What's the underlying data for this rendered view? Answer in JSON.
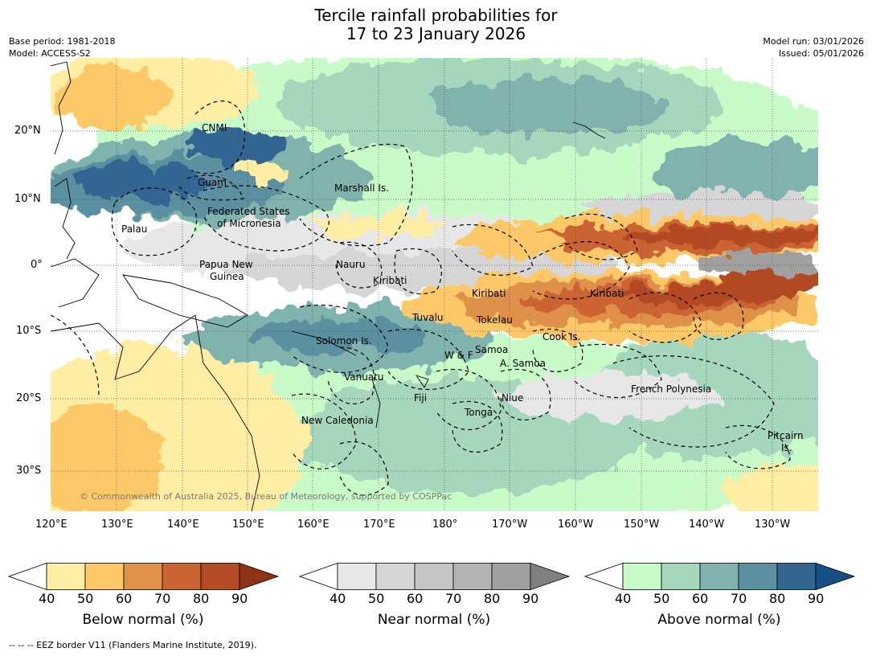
{
  "title_line1": "Tercile rainfall probabilities for",
  "title_line2": "17 to 23 January 2026",
  "base_period": "Base period: 1981-2018",
  "model": "Model: ACCESS-S2",
  "model_run": "Model run: 03/01/2026",
  "issued": "Issued: 05/01/2026",
  "lat_labels": [
    "20°N",
    "10°N",
    "0°",
    "10°S",
    "20°S",
    "30°S"
  ],
  "lon_labels": [
    "120°E",
    "130°E",
    "140°E",
    "150°E",
    "160°E",
    "170°E",
    "180°",
    "170°W",
    "160°W",
    "150°W",
    "140°W",
    "130°W"
  ],
  "places": [
    {
      "name": "CNMI"
    },
    {
      "name": "Guam"
    },
    {
      "name": "Marshall Is."
    },
    {
      "name": "Federated States"
    },
    {
      "name": "of Micronesia"
    },
    {
      "name": "Palau"
    },
    {
      "name": "Papua New"
    },
    {
      "name": "Guinea"
    },
    {
      "name": "Nauru"
    },
    {
      "name": "Kiribati"
    },
    {
      "name": "Kiribati"
    },
    {
      "name": "Kiribati"
    },
    {
      "name": "Tuvalu"
    },
    {
      "name": "Tokelau"
    },
    {
      "name": "Cook Is."
    },
    {
      "name": "Solomon Is."
    },
    {
      "name": "W & F"
    },
    {
      "name": "Samoa"
    },
    {
      "name": "A. Samoa"
    },
    {
      "name": "Vanuatu"
    },
    {
      "name": "Fiji"
    },
    {
      "name": "Niue"
    },
    {
      "name": "Tonga"
    },
    {
      "name": "French Polynesia"
    },
    {
      "name": "New Caledonia"
    },
    {
      "name": "Pitcairn"
    },
    {
      "name": "Is."
    }
  ],
  "copyright": "© Commonwealth of Australia 2025, Bureau of Meteorology, supported by COSPPac",
  "colorbars": [
    {
      "label": "Below normal (%)",
      "ticks": [
        "40",
        "50",
        "60",
        "70",
        "80",
        "90"
      ],
      "colors": [
        "#ffeea3",
        "#fdc967",
        "#e0914a",
        "#cb6430",
        "#b24a24"
      ],
      "extend_color": "#8f3318"
    },
    {
      "label": "Near normal (%)",
      "ticks": [
        "40",
        "50",
        "60",
        "70",
        "80",
        "90"
      ],
      "colors": [
        "#e7e7e7",
        "#d6d6d6",
        "#c5c5c5",
        "#b3b3b3",
        "#a0a0a0"
      ],
      "extend_color": "#808080"
    },
    {
      "label": "Above normal (%)",
      "ticks": [
        "40",
        "50",
        "60",
        "70",
        "80",
        "90"
      ],
      "colors": [
        "#c9fbc9",
        "#a6d6bc",
        "#80b3ae",
        "#5a90a0",
        "#326592"
      ],
      "extend_color": "#164f84"
    }
  ],
  "footnote": "--  --  -- EEZ border V11 (Flanders Marine Institute, 2019)."
}
